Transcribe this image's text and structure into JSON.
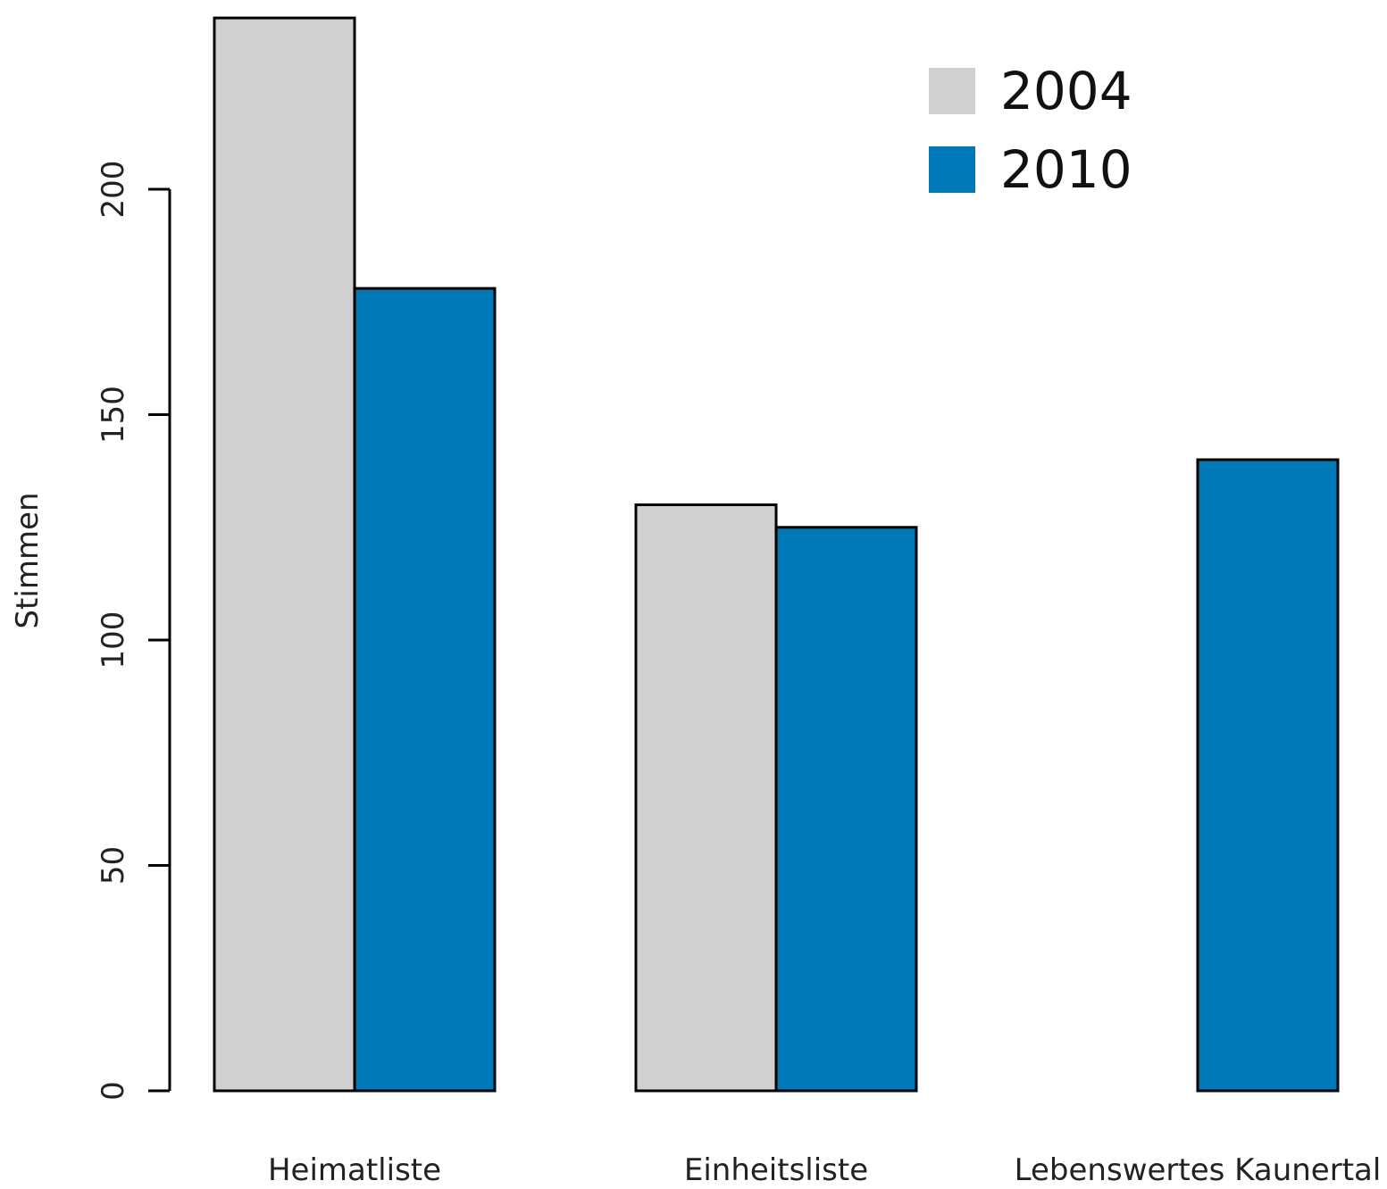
{
  "chart_data": {
    "type": "bar",
    "ylabel": "Stimmen",
    "categories": [
      "Heimatliste",
      "Einheitsliste",
      "Lebenswertes Kaunertal"
    ],
    "series": [
      {
        "name": "2004",
        "color": "#d0d0d0",
        "values": [
          238,
          130,
          0
        ]
      },
      {
        "name": "2010",
        "color": "#0079b8",
        "values": [
          178,
          125,
          140
        ]
      }
    ],
    "yticks": [
      0,
      50,
      100,
      150,
      200
    ],
    "ylim": [
      0,
      240
    ],
    "legend_position": "top-right",
    "grid": false
  }
}
